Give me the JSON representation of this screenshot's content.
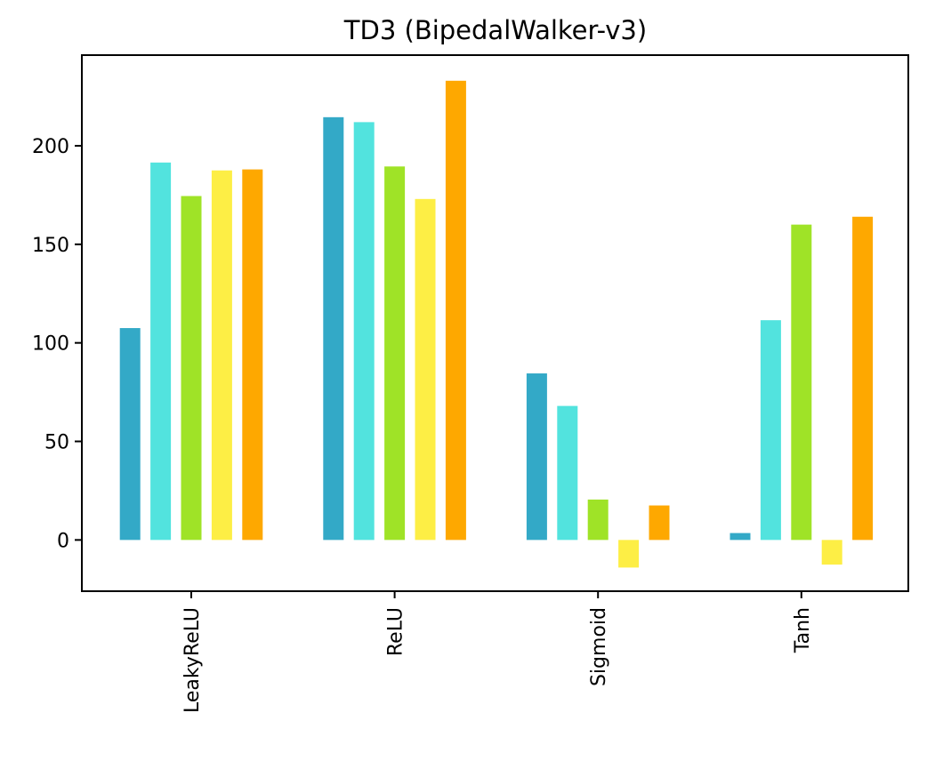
{
  "chart_data": {
    "type": "bar",
    "title": "TD3 (BipedalWalker-v3)",
    "xlabel": "",
    "ylabel": "",
    "categories": [
      "LeakyReLU",
      "ReLU",
      "Sigmoid",
      "Tanh"
    ],
    "series": [
      {
        "values": [
          107.5,
          214.5,
          84.5,
          3.5
        ],
        "color": "#33a9c7"
      },
      {
        "values": [
          191.5,
          212.0,
          68.0,
          111.5
        ],
        "color": "#52e3de"
      },
      {
        "values": [
          174.5,
          189.5,
          20.5,
          160.0
        ],
        "color": "#9fe327"
      },
      {
        "values": [
          187.5,
          173.0,
          -14.0,
          -12.5
        ],
        "color": "#fdee45"
      },
      {
        "values": [
          188.0,
          233.0,
          17.5,
          164.0
        ],
        "color": "#fea800"
      }
    ],
    "ylim": [
      -26,
      246
    ],
    "yticks": [
      0,
      50,
      100,
      150,
      200
    ],
    "grid": false,
    "legend": "none",
    "x_tick_rotation": 90
  }
}
